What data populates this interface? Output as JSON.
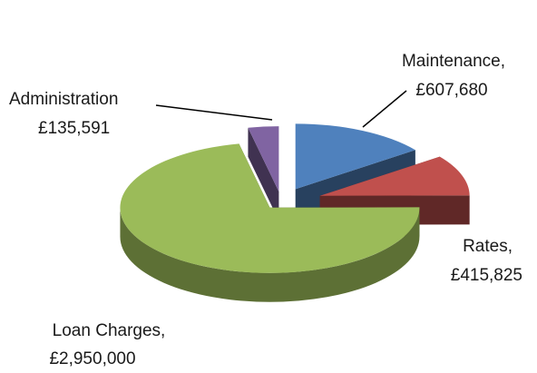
{
  "chart_data": {
    "type": "pie",
    "categories": [
      "Maintenance,",
      "Rates,",
      "Loan Charges,",
      "Administration"
    ],
    "values": [
      607680,
      415825,
      2950000,
      135591
    ],
    "value_labels": [
      "£607,680",
      "£415,825",
      "£2,950,000",
      "£135,591"
    ],
    "colors": [
      "#4f81bd",
      "#c0504d",
      "#9bbb59",
      "#8064a2"
    ]
  }
}
